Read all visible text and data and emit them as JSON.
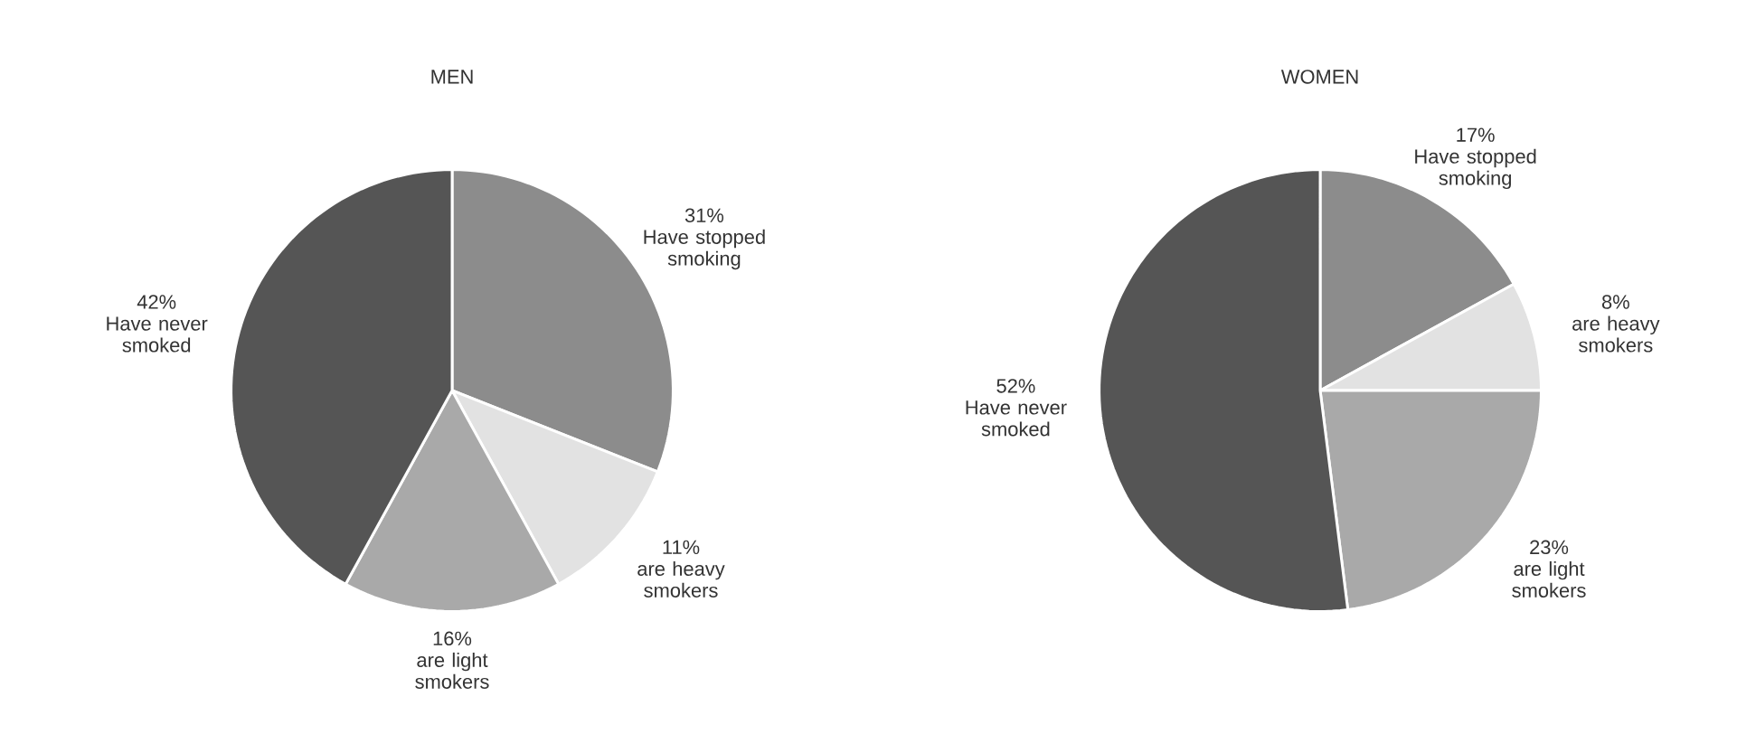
{
  "chart_data": [
    {
      "type": "pie",
      "title": "MEN",
      "categories": [
        "Have stopped smoking",
        "are heavy smokers",
        "are light smokers",
        "Have never smoked"
      ],
      "values": [
        31,
        11,
        16,
        42
      ],
      "value_labels": [
        "31%",
        "11%",
        "16%",
        "42%"
      ],
      "colors": [
        "#8c8c8c",
        "#e2e2e2",
        "#a9a9a9",
        "#555555"
      ]
    },
    {
      "type": "pie",
      "title": "WOMEN",
      "categories": [
        "Have stopped smoking",
        "are heavy smokers",
        "are light smokers",
        "Have never smoked"
      ],
      "values": [
        17,
        8,
        23,
        52
      ],
      "value_labels": [
        "17%",
        "8%",
        "23%",
        "52%"
      ],
      "colors": [
        "#8c8c8c",
        "#e2e2e2",
        "#a9a9a9",
        "#555555"
      ]
    }
  ]
}
